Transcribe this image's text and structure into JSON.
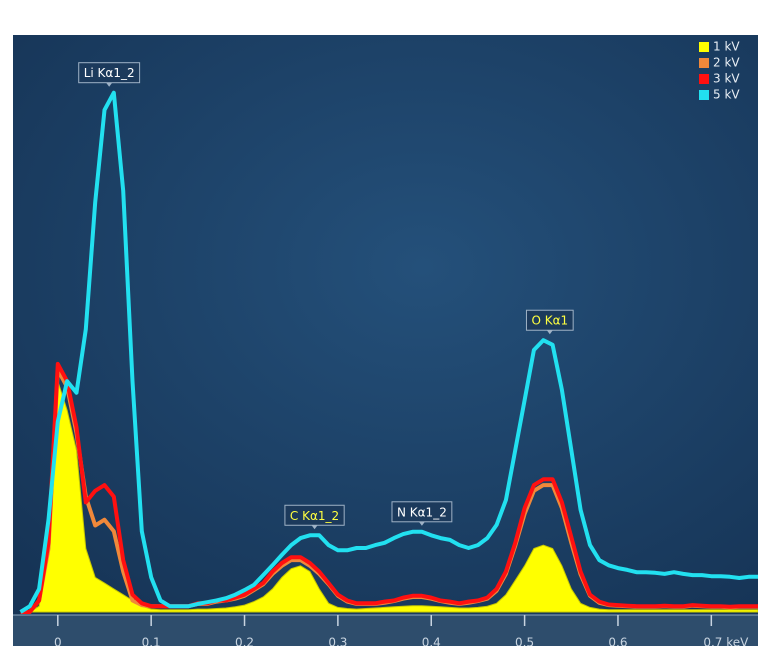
{
  "chart_data": {
    "type": "line",
    "xlim": [
      -0.048,
      0.75
    ],
    "ylim": [
      0,
      100
    ],
    "xticks": [
      0,
      0.1,
      0.2,
      0.3,
      0.4,
      0.5,
      0.6,
      {
        "value": 0.7,
        "label": "0.7 keV"
      }
    ],
    "legend": "top-right",
    "x": [
      -0.04,
      -0.03,
      -0.02,
      -0.01,
      0,
      0.01,
      0.02,
      0.03,
      0.04,
      0.05,
      0.06,
      0.07,
      0.08,
      0.09,
      0.1,
      0.11,
      0.12,
      0.13,
      0.14,
      0.15,
      0.16,
      0.17,
      0.18,
      0.19,
      0.2,
      0.21,
      0.22,
      0.23,
      0.24,
      0.25,
      0.26,
      0.27,
      0.28,
      0.29,
      0.3,
      0.31,
      0.32,
      0.33,
      0.34,
      0.35,
      0.36,
      0.37,
      0.38,
      0.39,
      0.4,
      0.41,
      0.42,
      0.43,
      0.44,
      0.45,
      0.46,
      0.47,
      0.48,
      0.49,
      0.5,
      0.51,
      0.52,
      0.53,
      0.54,
      0.55,
      0.56,
      0.57,
      0.58,
      0.59,
      0.6,
      0.61,
      0.62,
      0.63,
      0.64,
      0.65,
      0.66,
      0.67,
      0.68,
      0.69,
      0.7,
      0.71,
      0.72,
      0.73,
      0.74,
      0.75
    ],
    "series": [
      {
        "name": "1 kV",
        "color": "#ffff00",
        "fill": true,
        "values": [
          0,
          0,
          1,
          10,
          40,
          35,
          28,
          11,
          6,
          5,
          4,
          3,
          2,
          1,
          0.5,
          0.4,
          0.4,
          0.4,
          0.4,
          0.5,
          0.5,
          0.6,
          0.7,
          0.9,
          1.2,
          1.8,
          2.6,
          4,
          6,
          7.5,
          8,
          7,
          4,
          1.5,
          0.8,
          0.6,
          0.5,
          0.6,
          0.7,
          0.8,
          0.9,
          1,
          1.1,
          1.1,
          1,
          0.9,
          0.8,
          0.7,
          0.7,
          0.8,
          1,
          1.5,
          3,
          5.5,
          8,
          11,
          11.6,
          11,
          8,
          4,
          1.5,
          0.8,
          0.5,
          0.4,
          0.4,
          0.4,
          0.4,
          0.4,
          0.4,
          0.4,
          0.4,
          0.4,
          0.4,
          0.4,
          0.4,
          0.4,
          0.4,
          0.4,
          0.4,
          0.4
        ]
      },
      {
        "name": "2 kV",
        "color": "#f0883a",
        "values": [
          0,
          0,
          2,
          11,
          42,
          39,
          31,
          20,
          15,
          16,
          14,
          7,
          2,
          1.2,
          1,
          1,
          1,
          1,
          1,
          1.4,
          1.4,
          1.8,
          2,
          2.3,
          2.8,
          3.8,
          4.8,
          6.6,
          8,
          9,
          9,
          8,
          6.6,
          4.8,
          2.8,
          1.8,
          1.4,
          1.4,
          1.4,
          1.6,
          1.9,
          2.3,
          2.6,
          2.6,
          2.3,
          1.9,
          1.6,
          1.4,
          1.6,
          1.9,
          2.3,
          3.7,
          6.6,
          11.5,
          17,
          21,
          22,
          22,
          18,
          12,
          6.5,
          2.8,
          1.6,
          1.2,
          1.1,
          1,
          0.9,
          0.9,
          0.9,
          1,
          0.9,
          0.9,
          1.1,
          1,
          0.9,
          0.9,
          0.8,
          0.9,
          0.9,
          0.9
        ]
      },
      {
        "name": "3 kV",
        "color": "#ff1010",
        "values": [
          0,
          0,
          2,
          12,
          43,
          40,
          32,
          19,
          21,
          22,
          20,
          9,
          3,
          1.5,
          1,
          1,
          1,
          1,
          1,
          1.5,
          1.5,
          2,
          2,
          2.5,
          3,
          4,
          5,
          7,
          8.5,
          9.5,
          9.5,
          8.5,
          7,
          5,
          3,
          2,
          1.5,
          1.5,
          1.5,
          1.8,
          2,
          2.5,
          2.8,
          2.8,
          2.5,
          2,
          1.8,
          1.5,
          1.8,
          2,
          2.5,
          4,
          7,
          12,
          18,
          22,
          23,
          23,
          19,
          13,
          7,
          3,
          1.8,
          1.3,
          1.2,
          1.1,
          1,
          1,
          1,
          1.1,
          1,
          1,
          1.2,
          1.1,
          1,
          1,
          0.9,
          1,
          1,
          1
        ]
      },
      {
        "name": "5 kV",
        "color": "#22e0f0",
        "values": [
          0,
          1,
          4,
          16,
          33,
          40,
          38,
          49,
          71,
          87,
          90,
          73,
          40,
          14,
          6,
          2,
          1,
          1,
          1,
          1.4,
          1.7,
          2,
          2.4,
          3,
          3.8,
          4.7,
          6.4,
          8.1,
          9.9,
          11.6,
          12.8,
          13.3,
          13.3,
          11.6,
          10.7,
          10.7,
          11.1,
          11.1,
          11.6,
          12,
          12.8,
          13.5,
          13.9,
          13.9,
          13.3,
          12.8,
          12.5,
          11.6,
          11.1,
          11.6,
          12.8,
          15.1,
          19.4,
          28.1,
          36.7,
          45.4,
          47.1,
          46.3,
          38.5,
          28.1,
          17.7,
          11.6,
          9,
          8.1,
          7.6,
          7.3,
          6.9,
          6.9,
          6.8,
          6.6,
          6.9,
          6.6,
          6.4,
          6.4,
          6.2,
          6.2,
          6.1,
          5.9,
          6.1,
          6.1
        ]
      }
    ],
    "annotations": [
      {
        "text": "Li Kα1_2",
        "x": 0.055,
        "y": 90,
        "color": "#ffffff"
      },
      {
        "text": "C Kα1_2",
        "x": 0.275,
        "y": 13.3,
        "color": "#ffff40"
      },
      {
        "text": "N Kα1_2",
        "x": 0.39,
        "y": 13.9,
        "color": "#ffffff"
      },
      {
        "text": "O Kα1",
        "x": 0.527,
        "y": 47.1,
        "color": "#ffff40"
      }
    ]
  }
}
